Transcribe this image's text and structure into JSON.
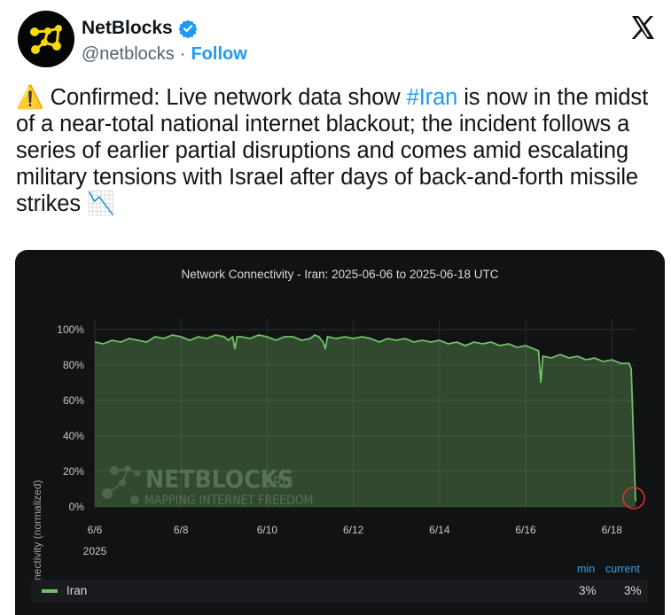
{
  "account": {
    "name": "NetBlocks",
    "handle": "@netblocks",
    "separator": "·",
    "follow_label": "Follow"
  },
  "tweet": {
    "warning_emoji": "⚠️",
    "text_before": " Confirmed: Live network data show ",
    "hashtag": "#Iran",
    "text_after": " is now in the midst of a near-total national internet blackout; the incident follows a series of earlier partial disruptions and comes amid escalating military tensions with Israel after days of back-and-forth missile strikes ",
    "trend_emoji": "📉"
  },
  "colors": {
    "accent": "#1d9bf0",
    "series": "#73bf69",
    "chart_bg": "#111214",
    "highlight_circle": "#e02f2f"
  },
  "chart_data": {
    "type": "area",
    "title": "Network Connectivity - Iran: 2025-06-06 to 2025-06-18 UTC",
    "ylabel": "Connectivity (normalized)",
    "xlabel": "",
    "ylim": [
      0,
      100
    ],
    "y_ticks": [
      "0%",
      "20%",
      "40%",
      "60%",
      "80%",
      "100%"
    ],
    "y_tick_values": [
      0,
      20,
      40,
      60,
      80,
      100
    ],
    "x_ticks": [
      "6/6",
      "6/8",
      "6/10",
      "6/12",
      "6/14",
      "6/16",
      "6/18"
    ],
    "x_tick_days": [
      0,
      2,
      4,
      6,
      8,
      10,
      12
    ],
    "x_year_label": "2025",
    "xlim": [
      0,
      12.55
    ],
    "grid": true,
    "series": [
      {
        "name": "Iran",
        "points": [
          [
            0,
            93
          ],
          [
            0.2,
            92
          ],
          [
            0.4,
            94
          ],
          [
            0.6,
            93
          ],
          [
            0.8,
            95
          ],
          [
            1.0,
            94
          ],
          [
            1.2,
            93
          ],
          [
            1.4,
            96
          ],
          [
            1.6,
            95
          ],
          [
            1.8,
            97
          ],
          [
            2.0,
            96
          ],
          [
            2.2,
            94
          ],
          [
            2.4,
            96
          ],
          [
            2.6,
            95
          ],
          [
            2.8,
            97
          ],
          [
            3.0,
            96
          ],
          [
            3.1,
            94
          ],
          [
            3.2,
            96
          ],
          [
            3.25,
            89
          ],
          [
            3.3,
            96
          ],
          [
            3.4,
            96
          ],
          [
            3.6,
            95
          ],
          [
            3.8,
            97
          ],
          [
            4.0,
            96
          ],
          [
            4.2,
            94
          ],
          [
            4.4,
            96
          ],
          [
            4.6,
            96
          ],
          [
            4.8,
            94
          ],
          [
            5.0,
            95
          ],
          [
            5.1,
            97
          ],
          [
            5.2,
            96
          ],
          [
            5.3,
            93
          ],
          [
            5.35,
            89
          ],
          [
            5.4,
            96
          ],
          [
            5.6,
            95
          ],
          [
            5.8,
            96
          ],
          [
            6.0,
            95
          ],
          [
            6.2,
            96
          ],
          [
            6.4,
            95
          ],
          [
            6.6,
            93
          ],
          [
            6.8,
            95
          ],
          [
            7.0,
            94
          ],
          [
            7.2,
            95
          ],
          [
            7.4,
            93
          ],
          [
            7.6,
            94
          ],
          [
            7.8,
            93
          ],
          [
            8.0,
            94
          ],
          [
            8.2,
            92
          ],
          [
            8.4,
            93
          ],
          [
            8.6,
            91
          ],
          [
            8.8,
            93
          ],
          [
            9.0,
            92
          ],
          [
            9.2,
            93
          ],
          [
            9.4,
            91
          ],
          [
            9.6,
            92
          ],
          [
            9.8,
            90
          ],
          [
            10.0,
            91
          ],
          [
            10.2,
            89
          ],
          [
            10.3,
            88
          ],
          [
            10.35,
            70
          ],
          [
            10.4,
            85
          ],
          [
            10.6,
            84
          ],
          [
            10.8,
            86
          ],
          [
            11.0,
            84
          ],
          [
            11.2,
            85
          ],
          [
            11.4,
            83
          ],
          [
            11.6,
            84
          ],
          [
            11.8,
            82
          ],
          [
            12.0,
            83
          ],
          [
            12.2,
            81
          ],
          [
            12.4,
            81
          ],
          [
            12.45,
            78
          ],
          [
            12.55,
            3
          ]
        ]
      }
    ],
    "annotation": "circled drop at end",
    "legend": {
      "placement": "bottom",
      "min_header": "min",
      "current_header": "current",
      "series_name": "Iran",
      "min_value": "3%",
      "current_value": "3%"
    },
    "watermark": {
      "main": "NETBLOCKS",
      "suffix": ".ORG",
      "tagline": "MAPPING INTERNET FREEDOM"
    }
  }
}
